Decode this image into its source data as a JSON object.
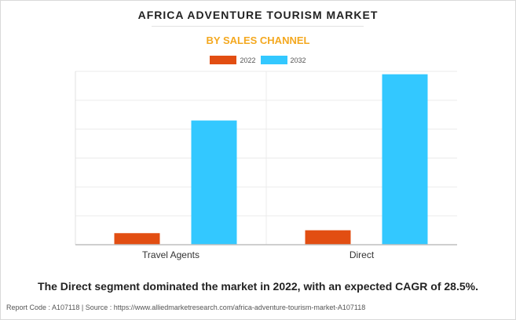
{
  "chart_data": {
    "type": "bar",
    "title": "AFRICA ADVENTURE TOURISM MARKET",
    "subtitle": "BY SALES CHANNEL",
    "categories": [
      "Travel Agents",
      "Direct"
    ],
    "series": [
      {
        "name": "2022",
        "color": "#e24e12",
        "values": [
          0.4,
          0.5
        ]
      },
      {
        "name": "2032",
        "color": "#33c8ff",
        "values": [
          4.3,
          5.9
        ]
      }
    ],
    "ylim": [
      0,
      6.0
    ],
    "grid": true,
    "legend_position": "top-center",
    "xlabel": "",
    "ylabel": ""
  },
  "footnote": "The Direct segment dominated the market in 2022, with an expected CAGR of 28.5%.",
  "source": "Report Code : A107118  |  Source : https://www.alliedmarketresearch.com/africa-adventure-tourism-market-A107118"
}
